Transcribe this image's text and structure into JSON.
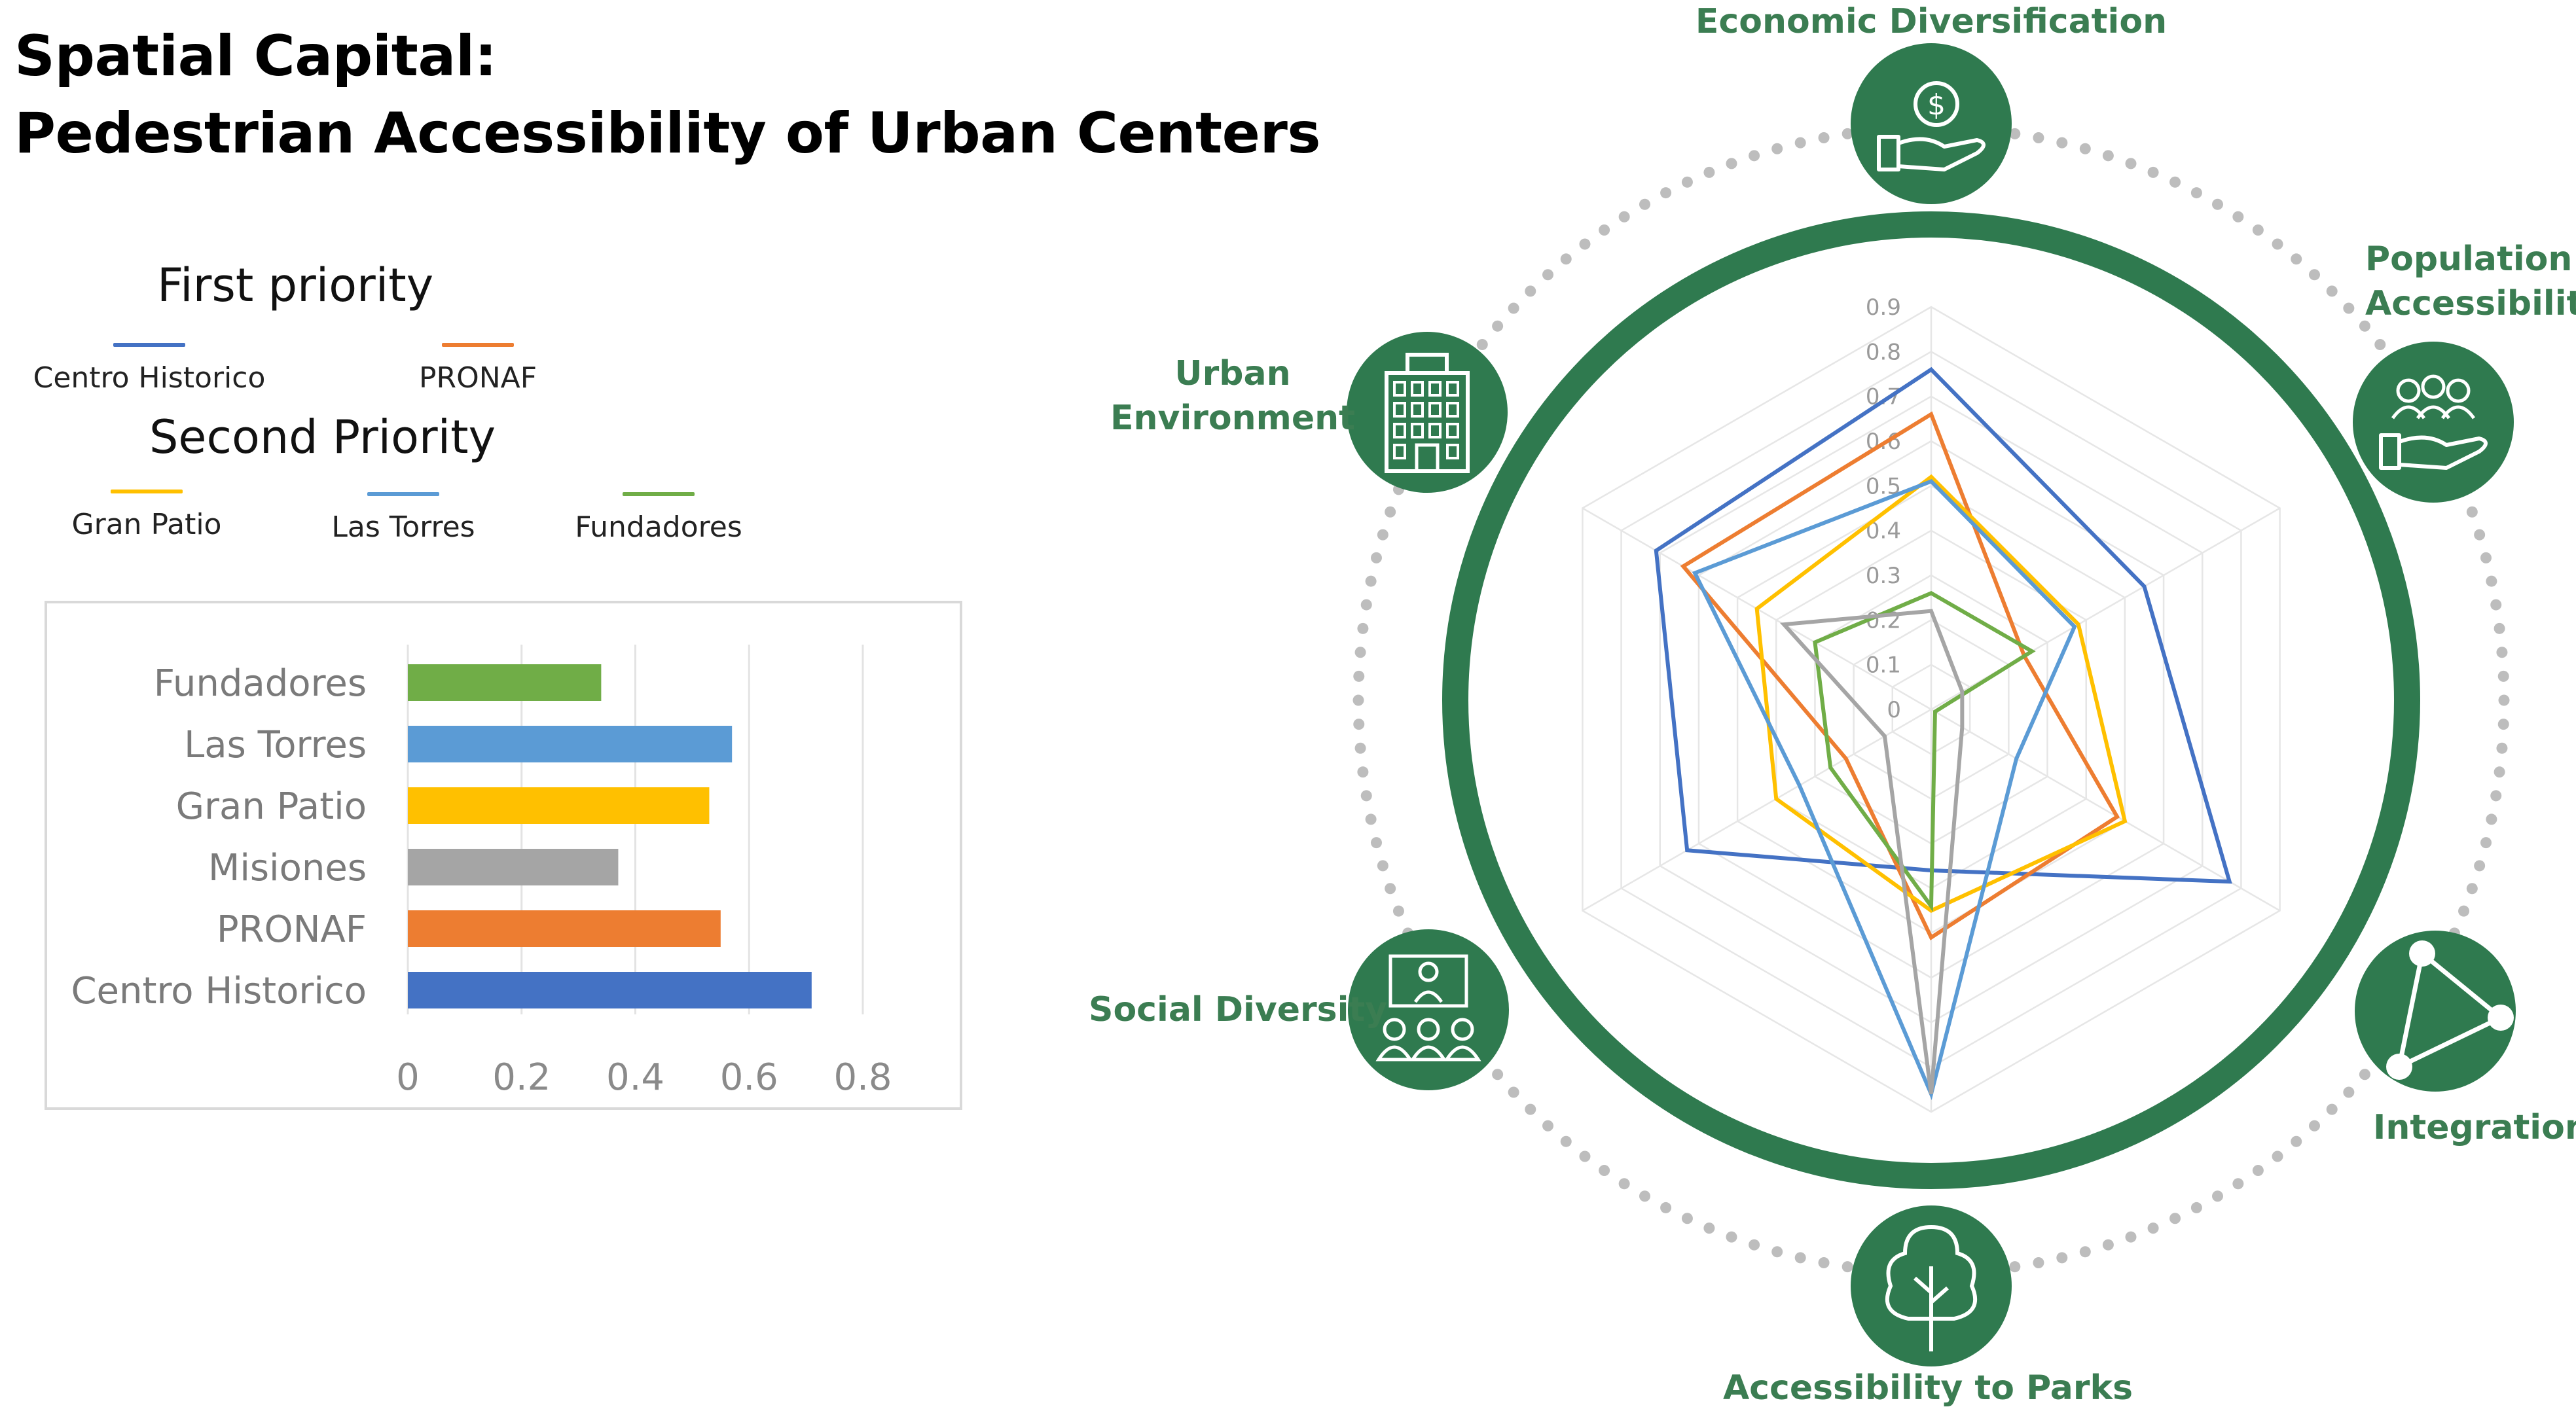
{
  "title": {
    "line1": "Spatial Capital:",
    "line2": "Pedestrian Accessibility of Urban Centers"
  },
  "legend": {
    "first_priority_heading": "First priority",
    "second_priority_heading": "Second Priority",
    "first": [
      {
        "label": "Centro Historico",
        "color": "#4472c4"
      },
      {
        "label": "PRONAF",
        "color": "#ed7d31"
      }
    ],
    "second": [
      {
        "label": "Gran Patio",
        "color": "#ffc000"
      },
      {
        "label": "Las Torres",
        "color": "#5b9bd5"
      },
      {
        "label": "Fundadores",
        "color": "#70ad47"
      }
    ]
  },
  "colors": {
    "brand_green": "#2f7a4f",
    "dot_gray": "#bdbdbd",
    "grid": "#e6e6e6"
  },
  "icons": [
    "money-hand-icon",
    "people-hand-icon",
    "network-icon",
    "tree-icon",
    "presentation-group-icon",
    "building-icon"
  ],
  "chart_data": [
    {
      "type": "bar",
      "orientation": "horizontal",
      "title": "",
      "categories": [
        "Fundadores",
        "Las Torres",
        "Gran Patio",
        "Misiones",
        "PRONAF",
        "Centro Historico"
      ],
      "values": [
        0.34,
        0.57,
        0.53,
        0.37,
        0.55,
        0.71
      ],
      "colors": [
        "#70ad47",
        "#5b9bd5",
        "#ffc000",
        "#a5a5a5",
        "#ed7d31",
        "#4472c4"
      ],
      "xlim": [
        0,
        0.8
      ],
      "xticks": [
        "0",
        "0.2",
        "0.4",
        "0.6",
        "0.8"
      ],
      "grid": true
    },
    {
      "type": "radar",
      "axes": [
        "Economic Diversification",
        "Population Accessibility",
        "Integration",
        "Accessibility to Parks",
        "Social Diversity",
        "Urban Environment"
      ],
      "rlim": [
        0,
        0.9
      ],
      "rticks": [
        "0",
        "0.1",
        "0.2",
        "0.3",
        "0.4",
        "0.5",
        "0.6",
        "0.7",
        "0.8",
        "0.9"
      ],
      "series": [
        {
          "name": "Centro Historico",
          "color": "#4472c4",
          "values": [
            0.76,
            0.55,
            0.77,
            0.36,
            0.63,
            0.71
          ]
        },
        {
          "name": "PRONAF",
          "color": "#ed7d31",
          "values": [
            0.66,
            0.24,
            0.48,
            0.51,
            0.22,
            0.64
          ]
        },
        {
          "name": "Gran Patio",
          "color": "#ffc000",
          "values": [
            0.52,
            0.38,
            0.5,
            0.45,
            0.4,
            0.45
          ]
        },
        {
          "name": "Las Torres",
          "color": "#5b9bd5",
          "values": [
            0.51,
            0.37,
            0.22,
            0.86,
            0.34,
            0.61
          ]
        },
        {
          "name": "Fundadores",
          "color": "#70ad47",
          "values": [
            0.26,
            0.26,
            0.01,
            0.44,
            0.26,
            0.3
          ]
        },
        {
          "name": "Misiones",
          "color": "#a5a5a5",
          "values": [
            0.22,
            0.08,
            0.08,
            0.86,
            0.12,
            0.38
          ]
        }
      ]
    }
  ],
  "hub": {
    "labels": [
      {
        "lines": [
          "Economic Diversification"
        ],
        "icon": "money-hand-icon"
      },
      {
        "lines": [
          "Population",
          "Accessibility"
        ],
        "icon": "people-hand-icon"
      },
      {
        "lines": [
          "Integration"
        ],
        "icon": "network-icon"
      },
      {
        "lines": [
          "Accessibility to Parks"
        ],
        "icon": "tree-icon"
      },
      {
        "lines": [
          "Social Diversity"
        ],
        "icon": "presentation-group-icon"
      },
      {
        "lines": [
          "Urban",
          "Environment"
        ],
        "icon": "building-icon"
      }
    ]
  }
}
